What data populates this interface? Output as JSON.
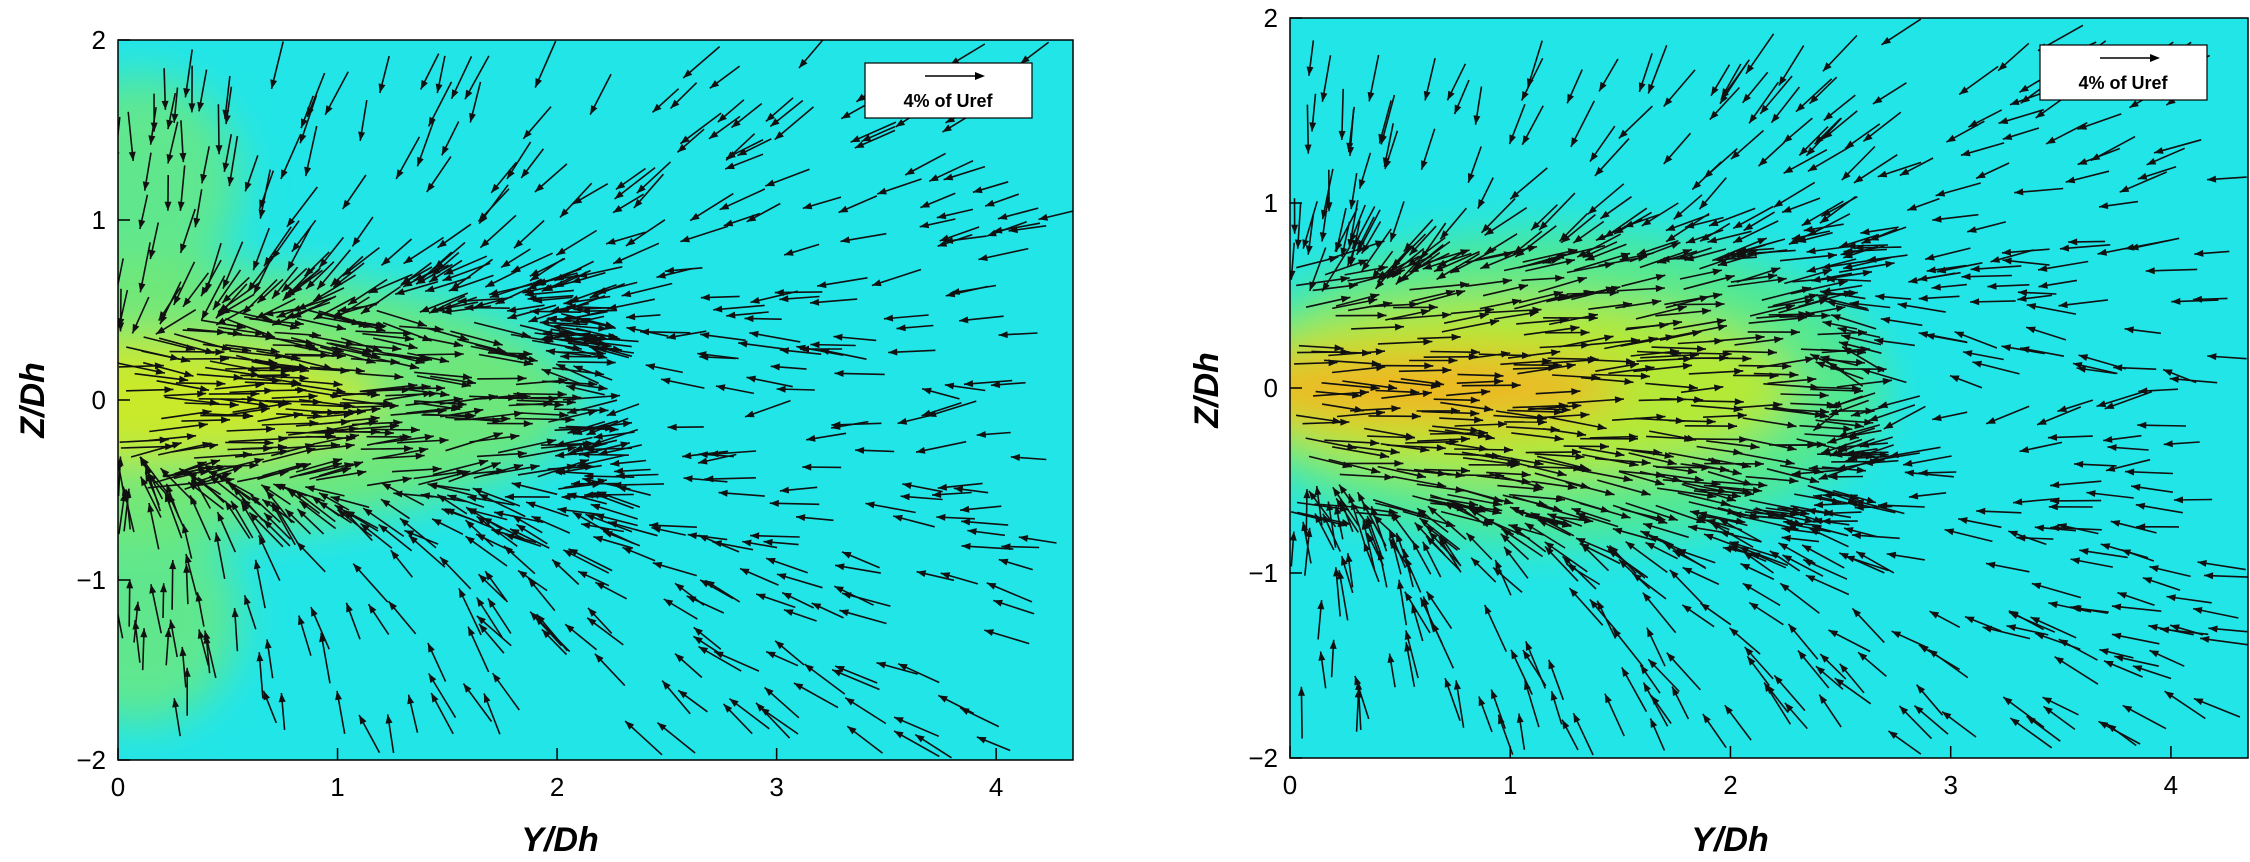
{
  "chart_data": [
    {
      "type": "vector_field",
      "xlabel": "Y/Dh",
      "ylabel": "Z/Dh",
      "xlim": [
        0,
        4.35
      ],
      "ylim": [
        -2,
        2
      ],
      "xticks": [
        "0",
        "1",
        "2",
        "3",
        "4"
      ],
      "yticks": [
        "2",
        "1",
        "0",
        "−1",
        "−2"
      ],
      "grid": false,
      "legend": {
        "position": "top-right",
        "text": "4% of Uref"
      },
      "background_color": "#22e5e8",
      "contour": [
        {
          "cx": 0.0,
          "cy": 0.0,
          "rx": 2.1,
          "ry": 0.75,
          "color": "#7ae86a",
          "opacity": 0.85
        },
        {
          "cx": 0.0,
          "cy": 0.0,
          "rx": 1.2,
          "ry": 0.35,
          "color": "#d9ea1e",
          "opacity": 0.85
        },
        {
          "cx": 0.1,
          "cy": 1.2,
          "rx": 0.45,
          "ry": 0.6,
          "color": "#7ae86a",
          "opacity": 0.7
        },
        {
          "cx": 0.1,
          "cy": -1.2,
          "rx": 0.45,
          "ry": 0.6,
          "color": "#7ae86a",
          "opacity": 0.7
        }
      ],
      "flow": {
        "pattern": "entrainment",
        "jet_length": 2.1,
        "jet_half_width": 0.5
      }
    },
    {
      "type": "vector_field",
      "xlabel": "Y/Dh",
      "ylabel": "Z/Dh",
      "xlim": [
        0,
        4.35
      ],
      "ylim": [
        -2,
        2
      ],
      "xticks": [
        "0",
        "1",
        "2",
        "3",
        "4"
      ],
      "yticks": [
        "2",
        "1",
        "0",
        "−1",
        "−2"
      ],
      "grid": false,
      "legend": {
        "position": "top-right",
        "text": "4% of Uref"
      },
      "background_color": "#22e5e8",
      "contour": [
        {
          "cx": 1.2,
          "cy": 0.0,
          "rx": 1.5,
          "ry": 0.85,
          "color": "#5fe87a",
          "opacity": 0.8
        },
        {
          "cx": 1.0,
          "cy": 0.0,
          "rx": 1.3,
          "ry": 0.5,
          "color": "#c6ea2a",
          "opacity": 0.85
        },
        {
          "cx": 0.6,
          "cy": 0.0,
          "rx": 0.9,
          "ry": 0.2,
          "color": "#f5b020",
          "opacity": 0.9
        }
      ],
      "flow": {
        "pattern": "jet",
        "jet_length": 2.5,
        "jet_half_width": 0.7
      }
    }
  ]
}
